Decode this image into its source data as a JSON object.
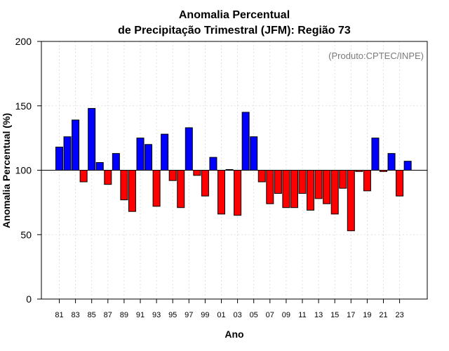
{
  "chart_data": {
    "type": "bar",
    "title": "Anomalia Percentual",
    "subtitle": "de Precipitação Trimestral (JFM): Região 73",
    "xlabel": "Ano",
    "ylabel": "Anomalia Percentual (%)",
    "credit": "(Produto:CPTEC/INPE)",
    "baseline": 100,
    "ylim": [
      0,
      200
    ],
    "yticks": [
      0,
      50,
      100,
      150,
      200
    ],
    "grid": true,
    "colors": {
      "above": "#0000ff",
      "below": "#ff0000",
      "outline": "#000000",
      "grid": "#d9d9d9"
    },
    "categories": [
      "81",
      "82",
      "83",
      "84",
      "85",
      "86",
      "87",
      "88",
      "89",
      "90",
      "91",
      "92",
      "93",
      "94",
      "95",
      "96",
      "97",
      "98",
      "99",
      "00",
      "01",
      "02",
      "03",
      "04",
      "05",
      "06",
      "07",
      "08",
      "09",
      "10",
      "11",
      "12",
      "13",
      "14",
      "15",
      "16",
      "17",
      "18",
      "19",
      "20",
      "21",
      "22",
      "23",
      "24"
    ],
    "tick_labels": [
      "81",
      "83",
      "85",
      "87",
      "89",
      "91",
      "93",
      "95",
      "97",
      "99",
      "01",
      "03",
      "05",
      "07",
      "09",
      "11",
      "13",
      "15",
      "17",
      "19",
      "21",
      "23"
    ],
    "values": [
      118,
      126,
      139,
      91,
      148,
      106,
      89,
      113,
      77,
      68,
      125,
      120,
      72,
      128,
      92,
      71,
      133,
      96,
      80,
      110,
      66,
      100.5,
      65,
      145,
      126,
      91,
      74,
      82,
      71,
      71,
      82,
      69,
      78,
      74,
      66,
      86,
      53,
      99,
      84,
      125,
      99,
      113,
      80,
      107
    ]
  }
}
